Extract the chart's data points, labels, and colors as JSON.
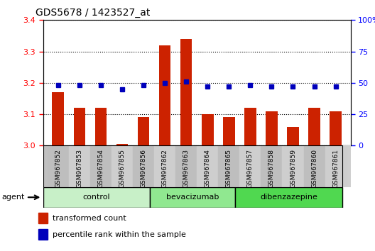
{
  "title": "GDS5678 / 1423527_at",
  "samples": [
    "GSM967852",
    "GSM967853",
    "GSM967854",
    "GSM967855",
    "GSM967856",
    "GSM967862",
    "GSM967863",
    "GSM967864",
    "GSM967865",
    "GSM967857",
    "GSM967858",
    "GSM967859",
    "GSM967860",
    "GSM967861"
  ],
  "transformed_count": [
    3.17,
    3.12,
    3.12,
    3.005,
    3.09,
    3.32,
    3.34,
    3.1,
    3.09,
    3.12,
    3.11,
    3.06,
    3.12,
    3.11
  ],
  "percentile_rank": [
    48,
    48,
    48,
    45,
    48,
    50,
    51,
    47,
    47,
    48,
    47,
    47,
    47,
    47
  ],
  "groups": [
    {
      "label": "control",
      "start": 0,
      "end": 5,
      "color": "#c8f0c8"
    },
    {
      "label": "bevacizumab",
      "start": 5,
      "end": 9,
      "color": "#90e890"
    },
    {
      "label": "dibenzazepine",
      "start": 9,
      "end": 14,
      "color": "#50d850"
    }
  ],
  "ylim_left": [
    3.0,
    3.4
  ],
  "ylim_right": [
    0,
    100
  ],
  "yticks_left": [
    3.0,
    3.1,
    3.2,
    3.3,
    3.4
  ],
  "yticks_right": [
    0,
    25,
    50,
    75,
    100
  ],
  "bar_color": "#cc2200",
  "dot_color": "#0000bb",
  "grid_color": "black",
  "agent_label": "agent",
  "legend_bar_label": "transformed count",
  "legend_dot_label": "percentile rank within the sample",
  "tick_bg_color": "#c8c8c8",
  "group_border_color": "#000000"
}
